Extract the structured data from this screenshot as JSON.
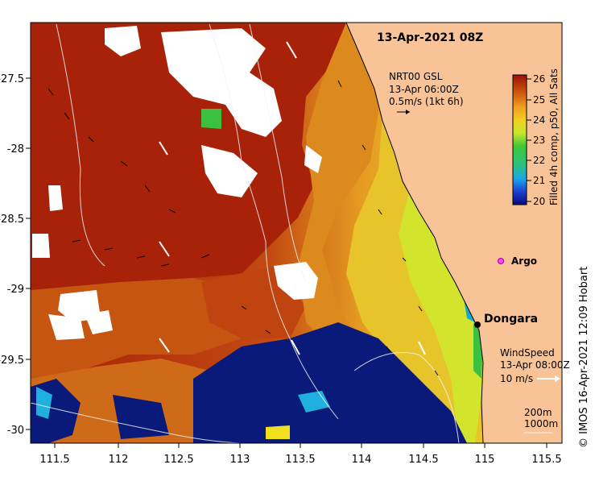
{
  "map": {
    "title": "13-Apr-2021 08Z",
    "x_ticks": [
      "111.5",
      "112",
      "112.5",
      "113",
      "113.5",
      "114",
      "114.5",
      "115",
      "115.5"
    ],
    "y_ticks": [
      "-27.5",
      "-28",
      "-28.5",
      "-29",
      "-29.5",
      "-30"
    ]
  },
  "current_legend": {
    "line1": "NRT00 GSL",
    "line2": "13-Apr 06:00Z",
    "line3": "0.5m/s (1kt 6h)"
  },
  "wind_legend": {
    "line1": "WindSpeed",
    "line2": "13-Apr 08:00Z",
    "line3": "10 m/s"
  },
  "depth_legend": {
    "line1": "200m",
    "line2": "1000m"
  },
  "colorbar": {
    "label": "Filled 4h comp, p50, All Sats",
    "ticks": [
      "26",
      "25",
      "24",
      "23",
      "22",
      "21",
      "20"
    ]
  },
  "places": {
    "argo": "Argo",
    "dongara": "Dongara"
  },
  "credit": "© IMOS 16-Apr-2021 12:09 Hobart",
  "colors": {
    "land": "#f9c398",
    "hot": "#a01a05",
    "warm": "#d0661a",
    "mid": "#e8b22a",
    "cool": "#d8e62a",
    "cold": "#0a1a7a",
    "cloud": "#ffffff"
  }
}
